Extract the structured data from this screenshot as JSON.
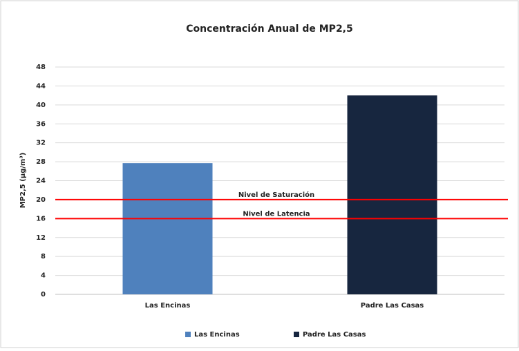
{
  "chart_data": {
    "type": "bar",
    "title": "Concentración Anual de MP2,5",
    "y_label": "MP2,5 (µg/m³)",
    "categories": [
      "Las Encinas",
      "Padre Las Casas"
    ],
    "values": [
      27.7,
      42
    ],
    "colors": [
      "#4f81bd",
      "#17263f"
    ],
    "ylim": [
      0,
      48
    ],
    "yticks": [
      0,
      4,
      8,
      12,
      16,
      20,
      24,
      28,
      32,
      36,
      40,
      44,
      48
    ],
    "grid": true,
    "legend": "bottom",
    "reference_lines": [
      {
        "label": "Nivel de Saturación",
        "value": 20,
        "color": "#ff0000"
      },
      {
        "label": "Nivel de Latencia",
        "value": 16,
        "color": "#ff0000"
      }
    ]
  }
}
